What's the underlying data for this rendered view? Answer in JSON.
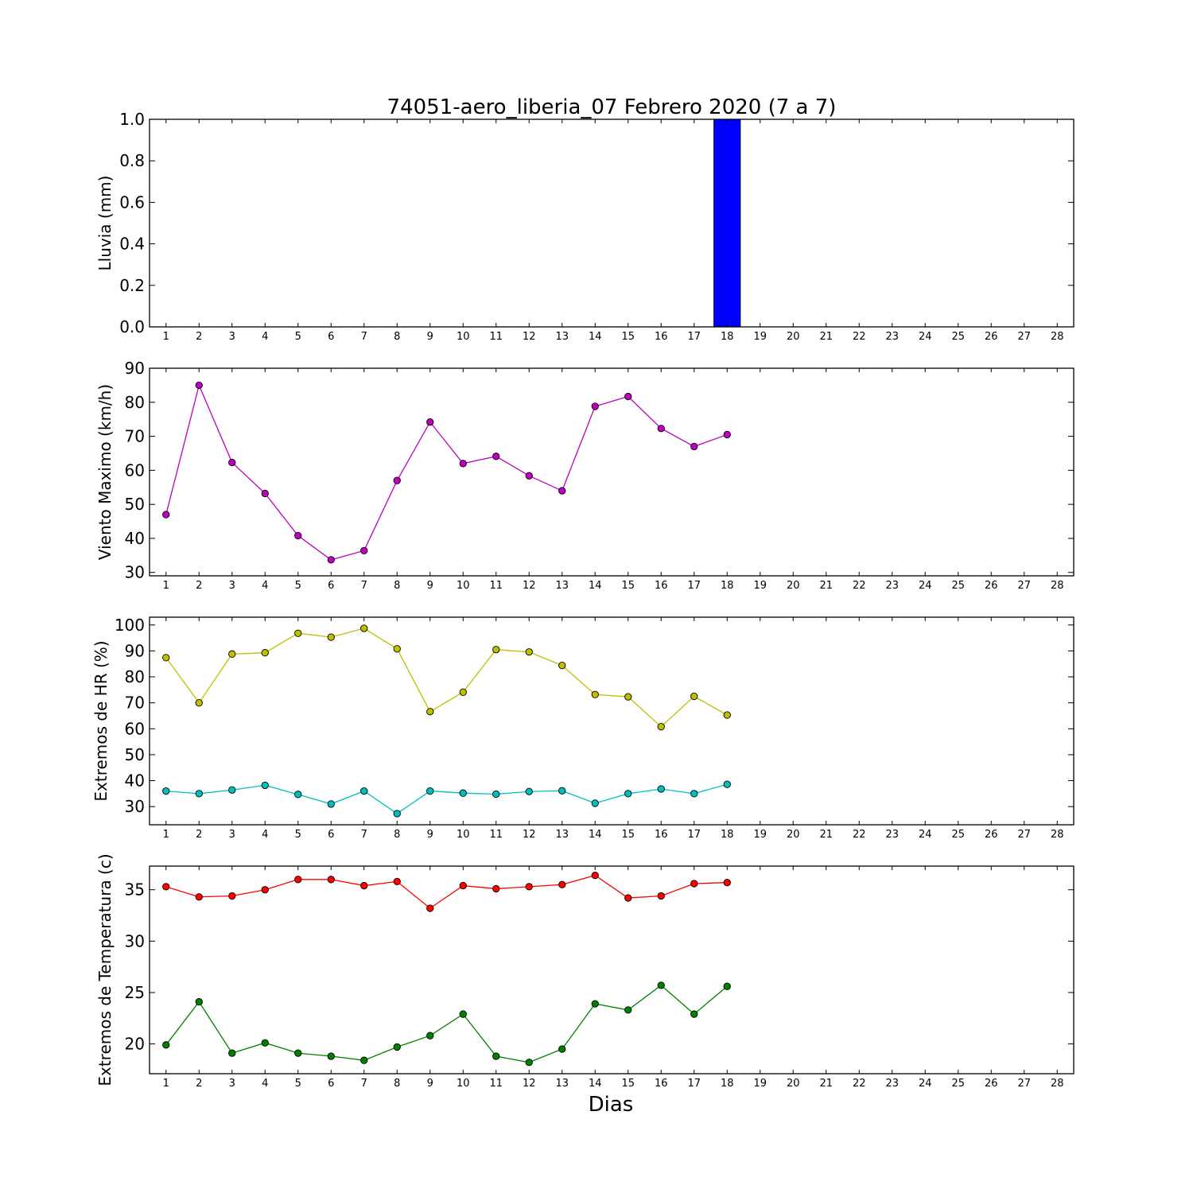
{
  "figure": {
    "title": "74051-aero_liberia_07 Febrero 2020  (7 a 7)",
    "xlabel": "Dias"
  },
  "chart_data": [
    {
      "type": "bar",
      "ylabel": "Lluvia (mm)",
      "x_ticks": [
        "1",
        "2",
        "3",
        "4",
        "5",
        "6",
        "7",
        "8",
        "9",
        "10",
        "11",
        "12",
        "13",
        "14",
        "15",
        "16",
        "17",
        "18",
        "19",
        "20",
        "21",
        "22",
        "23",
        "24",
        "25",
        "26",
        "27",
        "28"
      ],
      "xlim": [
        0.5,
        28.5
      ],
      "ylim": [
        0,
        1
      ],
      "y_ticks": [
        "0.0",
        "0.2",
        "0.4",
        "0.6",
        "0.8",
        "1.0"
      ],
      "grid": false,
      "series": [
        {
          "color": "#0000ff",
          "x": [
            1,
            2,
            3,
            4,
            5,
            6,
            7,
            8,
            9,
            10,
            11,
            12,
            13,
            14,
            15,
            16,
            17,
            18
          ],
          "values": [
            0,
            0,
            0,
            0,
            0,
            0,
            0,
            0,
            0,
            0,
            0,
            0,
            0,
            0,
            0,
            0,
            0,
            1.0
          ]
        }
      ]
    },
    {
      "type": "line",
      "ylabel": "Viento Maximo (km/h)",
      "x_ticks": [
        "1",
        "2",
        "3",
        "4",
        "5",
        "6",
        "7",
        "8",
        "9",
        "10",
        "11",
        "12",
        "13",
        "14",
        "15",
        "16",
        "17",
        "18",
        "19",
        "20",
        "21",
        "22",
        "23",
        "24",
        "25",
        "26",
        "27",
        "28"
      ],
      "xlim": [
        0.5,
        28.5
      ],
      "ylim": [
        29,
        90
      ],
      "y_ticks": [
        "30",
        "40",
        "50",
        "60",
        "70",
        "80",
        "90"
      ],
      "grid": false,
      "series": [
        {
          "color": "#bf00bf",
          "x": [
            1,
            2,
            3,
            4,
            5,
            6,
            7,
            8,
            9,
            10,
            11,
            12,
            13,
            14,
            15,
            16,
            17,
            18
          ],
          "values": [
            47.0,
            85.0,
            62.3,
            53.2,
            40.8,
            33.7,
            36.4,
            57.0,
            74.2,
            62.0,
            64.1,
            58.4,
            54.0,
            78.8,
            81.7,
            72.3,
            67.0,
            70.5
          ]
        }
      ]
    },
    {
      "type": "line",
      "ylabel": "Extremos de HR (%)",
      "x_ticks": [
        "1",
        "2",
        "3",
        "4",
        "5",
        "6",
        "7",
        "8",
        "9",
        "10",
        "11",
        "12",
        "13",
        "14",
        "15",
        "16",
        "17",
        "18",
        "19",
        "20",
        "21",
        "22",
        "23",
        "24",
        "25",
        "26",
        "27",
        "28"
      ],
      "xlim": [
        0.5,
        28.5
      ],
      "ylim": [
        23,
        103
      ],
      "y_ticks": [
        "30",
        "40",
        "50",
        "60",
        "70",
        "80",
        "90",
        "100"
      ],
      "grid": false,
      "series": [
        {
          "color": "#bfbf00",
          "x": [
            1,
            2,
            3,
            4,
            5,
            6,
            7,
            8,
            9,
            10,
            11,
            12,
            13,
            14,
            15,
            16,
            17,
            18
          ],
          "values": [
            87.4,
            70.0,
            88.8,
            89.3,
            96.8,
            95.3,
            98.7,
            90.8,
            66.6,
            74.1,
            90.5,
            89.6,
            84.4,
            73.2,
            72.3,
            60.8,
            72.5,
            65.3
          ]
        },
        {
          "color": "#00bfbf",
          "x": [
            1,
            2,
            3,
            4,
            5,
            6,
            7,
            8,
            9,
            10,
            11,
            12,
            13,
            14,
            15,
            16,
            17,
            18
          ],
          "values": [
            36.0,
            35.0,
            36.4,
            38.2,
            34.7,
            31.0,
            36.0,
            27.3,
            36.0,
            35.2,
            34.8,
            35.8,
            36.1,
            31.3,
            35.0,
            36.8,
            35.0,
            38.6
          ]
        }
      ]
    },
    {
      "type": "line",
      "ylabel": "Extremos de Temperatura (c)",
      "x_ticks": [
        "1",
        "2",
        "3",
        "4",
        "5",
        "6",
        "7",
        "8",
        "9",
        "10",
        "11",
        "12",
        "13",
        "14",
        "15",
        "16",
        "17",
        "18",
        "19",
        "20",
        "21",
        "22",
        "23",
        "24",
        "25",
        "26",
        "27",
        "28"
      ],
      "xlim": [
        0.5,
        28.5
      ],
      "ylim": [
        17.1,
        37.3
      ],
      "y_ticks": [
        "20",
        "25",
        "30",
        "35"
      ],
      "grid": false,
      "series": [
        {
          "color": "#ff0000",
          "x": [
            1,
            2,
            3,
            4,
            5,
            6,
            7,
            8,
            9,
            10,
            11,
            12,
            13,
            14,
            15,
            16,
            17,
            18
          ],
          "values": [
            35.3,
            34.3,
            34.4,
            35.0,
            36.0,
            36.0,
            35.4,
            35.8,
            33.2,
            35.4,
            35.1,
            35.3,
            35.5,
            36.4,
            34.2,
            34.4,
            35.6,
            35.7
          ]
        },
        {
          "color": "#008000",
          "x": [
            1,
            2,
            3,
            4,
            5,
            6,
            7,
            8,
            9,
            10,
            11,
            12,
            13,
            14,
            15,
            16,
            17,
            18
          ],
          "values": [
            19.9,
            24.1,
            19.1,
            20.1,
            19.1,
            18.8,
            18.4,
            19.7,
            20.8,
            22.9,
            18.8,
            18.2,
            19.5,
            23.9,
            23.3,
            25.7,
            22.9,
            25.6
          ]
        }
      ]
    }
  ]
}
